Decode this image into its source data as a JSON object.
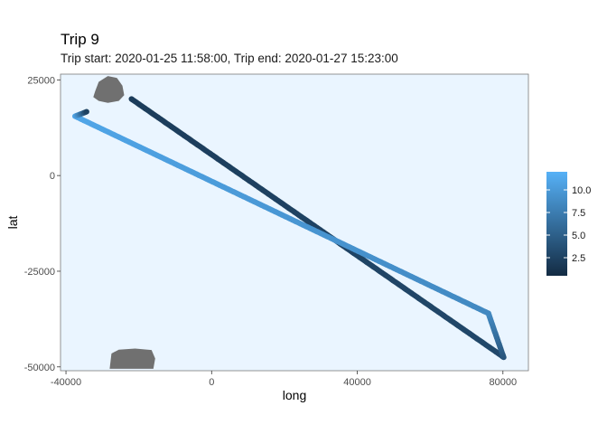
{
  "chart_data": {
    "type": "scatter",
    "title": "Trip 9",
    "subtitle": "Trip start: 2020-01-25 11:58:00, Trip end: 2020-01-27 15:23:00",
    "xlabel": "long",
    "ylabel": "lat",
    "xlim": [
      -41500,
      87000
    ],
    "ylim": [
      -51000,
      26500
    ],
    "x_ticks": [
      -40000,
      0,
      40000,
      80000
    ],
    "x_tick_labels": [
      "-40000",
      "0",
      "40000",
      "80000"
    ],
    "y_ticks": [
      25000,
      0,
      -25000,
      -50000
    ],
    "y_tick_labels": [
      "25000",
      "0",
      "-25000",
      "-50000"
    ],
    "grid": false,
    "panel_background": "#EAF5FF",
    "legend": {
      "placement": "right",
      "title": "",
      "color_low": "#132B43",
      "color_high": "#56B1F7",
      "range": [
        0.5,
        12
      ],
      "ticks": [
        2.5,
        5.0,
        7.5,
        10.0
      ],
      "tick_labels": [
        "2.5",
        "5.0",
        "7.5",
        "10.0"
      ]
    },
    "track_waypoints": [
      {
        "x": -22000,
        "y": 20000,
        "value": 2.0
      },
      {
        "x": 79500,
        "y": -47000,
        "value": 3.0
      },
      {
        "x": 80200,
        "y": -47500,
        "value": 4.0
      },
      {
        "x": 76000,
        "y": -36000,
        "value": 8.5
      },
      {
        "x": -37500,
        "y": 15500,
        "value": 11.0
      },
      {
        "x": -34000,
        "y": 16800,
        "value": 1.5
      }
    ],
    "land_color": "#707070",
    "land_masses": [
      [
        [
          -32000,
          22000
        ],
        [
          -31000,
          24500
        ],
        [
          -28500,
          26000
        ],
        [
          -26000,
          25500
        ],
        [
          -24500,
          23500
        ],
        [
          -24000,
          21000
        ],
        [
          -25500,
          19500
        ],
        [
          -28500,
          19000
        ],
        [
          -31000,
          19500
        ],
        [
          -32500,
          20500
        ]
      ],
      [
        [
          -28000,
          -50500
        ],
        [
          -27500,
          -46500
        ],
        [
          -25500,
          -45500
        ],
        [
          -21000,
          -45200
        ],
        [
          -16500,
          -45600
        ],
        [
          -15500,
          -47800
        ],
        [
          -16000,
          -50500
        ]
      ]
    ]
  }
}
